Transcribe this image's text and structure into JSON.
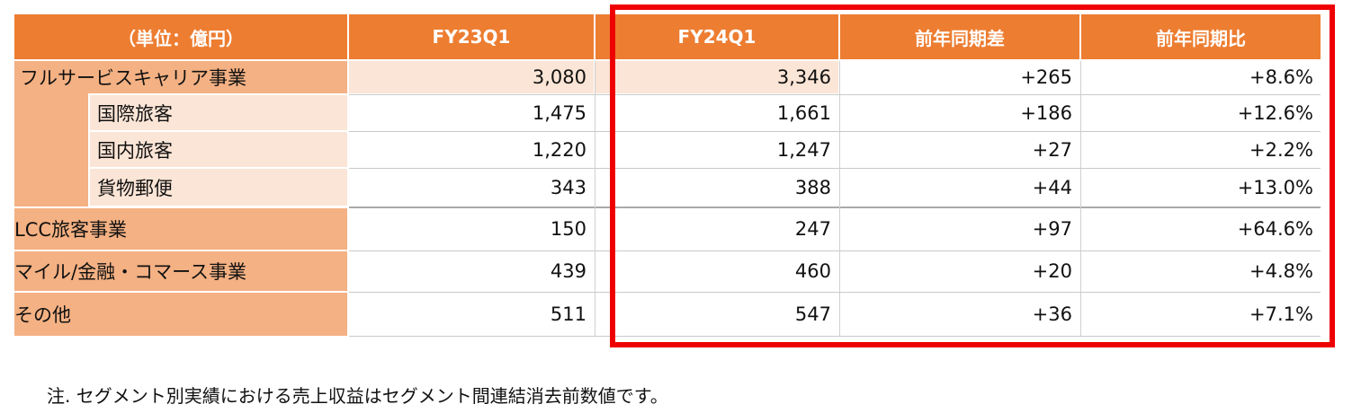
{
  "table": {
    "header": {
      "unit": "（単位：億円）",
      "fy23q1": "FY23Q1",
      "fy24q1": "FY24Q1",
      "yoy_diff": "前年同期差",
      "yoy_ratio": "前年同期比"
    },
    "rows": [
      {
        "label": "フルサービスキャリア事業",
        "fy23q1": "3,080",
        "fy24q1": "3,346",
        "diff": "+265",
        "ratio": "+8.6%"
      },
      {
        "label": "国際旅客",
        "fy23q1": "1,475",
        "fy24q1": "1,661",
        "diff": "+186",
        "ratio": "+12.6%"
      },
      {
        "label": "国内旅客",
        "fy23q1": "1,220",
        "fy24q1": "1,247",
        "diff": "+27",
        "ratio": "+2.2%"
      },
      {
        "label": "貨物郵便",
        "fy23q1": "343",
        "fy24q1": "388",
        "diff": "+44",
        "ratio": "+13.0%"
      },
      {
        "label": "LCC旅客事業",
        "fy23q1": "150",
        "fy24q1": "247",
        "diff": "+97",
        "ratio": "+64.6%"
      },
      {
        "label": "マイル/金融・コマース事業",
        "fy23q1": "439",
        "fy24q1": "460",
        "diff": "+20",
        "ratio": "+4.8%"
      },
      {
        "label": "その他",
        "fy23q1": "511",
        "fy24q1": "547",
        "diff": "+36",
        "ratio": "+7.1%"
      }
    ]
  },
  "note": "注. セグメント別実績における売上収益はセグメント間連結消去前数値です。",
  "colors": {
    "header_bg": "#ed7d31",
    "label_dark_bg": "#f4b183",
    "label_light_bg": "#fbe5d6",
    "highlight_border": "#ee0000"
  }
}
